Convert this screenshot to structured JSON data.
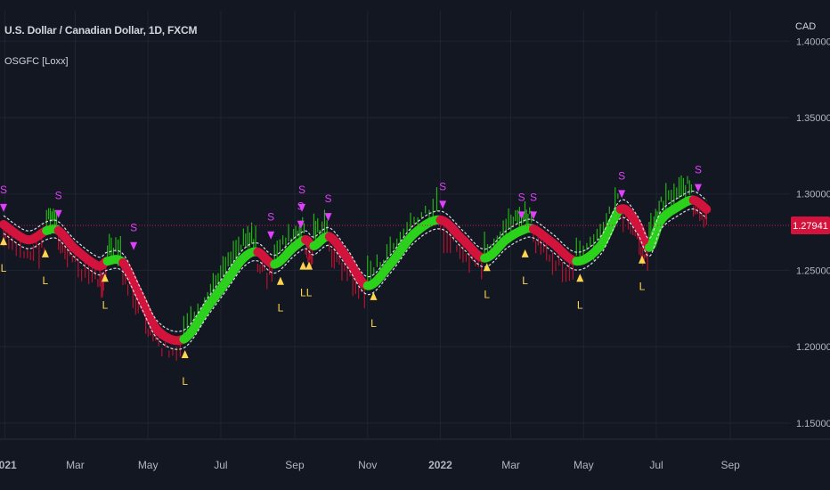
{
  "chart": {
    "title": "U.S. Dollar / Canadian Dollar, 1D, FXCM",
    "indicator_label": "OSGFC [Loxx]",
    "currency": "CAD",
    "last_price_label": "1.27941",
    "last_price": 1.27941,
    "colors": {
      "background": "#131722",
      "bull": "#2bd11b",
      "bear": "#d2143c",
      "short_marker": "#e040fb",
      "long_marker": "#ffd54f",
      "price_line": "#c2185b"
    }
  },
  "chart_data": {
    "type": "line",
    "title": "",
    "xlabel": "",
    "ylabel": "",
    "ylim": [
      1.14,
      1.42
    ],
    "y_ticks": [
      "1.40000",
      "1.35000",
      "1.30000",
      "1.25000",
      "1.20000",
      "1.15000"
    ],
    "y_tick_values": [
      1.4,
      1.35,
      1.3,
      1.25,
      1.2,
      1.15
    ],
    "x_ticks": [
      "2021",
      "Mar",
      "May",
      "Jul",
      "Sep",
      "Nov",
      "2022",
      "Mar",
      "May",
      "Jul",
      "Sep"
    ],
    "x_tick_dates": [
      "2021-01-01",
      "2021-03-01",
      "2021-05-01",
      "2021-07-01",
      "2021-09-01",
      "2021-11-01",
      "2022-01-01",
      "2022-03-01",
      "2022-05-01",
      "2022-07-01",
      "2022-09-01"
    ],
    "x_range": [
      "2020-12-31",
      "2022-09-30"
    ],
    "series": [
      {
        "points": [
          [
            "2020-12-31",
            1.28,
            "bear"
          ],
          [
            "2021-01-20",
            1.27,
            "bear"
          ],
          [
            "2021-02-05",
            1.276,
            "bull"
          ],
          [
            "2021-02-15",
            1.276,
            "bear"
          ],
          [
            "2021-03-01",
            1.264,
            "bear"
          ],
          [
            "2021-03-20",
            1.253,
            "bear"
          ],
          [
            "2021-03-28",
            1.256,
            "bull"
          ],
          [
            "2021-04-10",
            1.255,
            "bear"
          ],
          [
            "2021-04-25",
            1.232,
            "bear"
          ],
          [
            "2021-05-10",
            1.21,
            "bear"
          ],
          [
            "2021-05-31",
            1.205,
            "bull"
          ],
          [
            "2021-06-20",
            1.226,
            "bull"
          ],
          [
            "2021-07-05",
            1.242,
            "bull"
          ],
          [
            "2021-07-20",
            1.258,
            "bull"
          ],
          [
            "2021-08-01",
            1.262,
            "bear"
          ],
          [
            "2021-08-15",
            1.254,
            "bull"
          ],
          [
            "2021-08-31",
            1.265,
            "bull"
          ],
          [
            "2021-09-10",
            1.27,
            "bear"
          ],
          [
            "2021-09-17",
            1.266,
            "bull"
          ],
          [
            "2021-09-30",
            1.272,
            "bear"
          ],
          [
            "2021-10-15",
            1.258,
            "bear"
          ],
          [
            "2021-11-01",
            1.24,
            "bull"
          ],
          [
            "2021-11-20",
            1.254,
            "bull"
          ],
          [
            "2021-12-10",
            1.274,
            "bull"
          ],
          [
            "2022-01-01",
            1.283,
            "bear"
          ],
          [
            "2022-01-20",
            1.27,
            "bear"
          ],
          [
            "2022-02-07",
            1.258,
            "bull"
          ],
          [
            "2022-02-25",
            1.27,
            "bull"
          ],
          [
            "2022-03-10",
            1.276,
            "bull"
          ],
          [
            "2022-03-20",
            1.277,
            "bear"
          ],
          [
            "2022-04-05",
            1.268,
            "bear"
          ],
          [
            "2022-04-25",
            1.256,
            "bull"
          ],
          [
            "2022-05-15",
            1.266,
            "bull"
          ],
          [
            "2022-06-01",
            1.29,
            "bear"
          ],
          [
            "2022-06-15",
            1.28,
            "bear"
          ],
          [
            "2022-06-25",
            1.265,
            "bull"
          ],
          [
            "2022-07-05",
            1.283,
            "bull"
          ],
          [
            "2022-07-20",
            1.292,
            "bull"
          ],
          [
            "2022-08-01",
            1.296,
            "bear"
          ],
          [
            "2022-08-12",
            1.29,
            "bear"
          ]
        ]
      }
    ],
    "signals": [
      {
        "label": "S",
        "date": "2020-12-31",
        "price": 1.29
      },
      {
        "label": "L",
        "date": "2020-12-31",
        "price": 1.27
      },
      {
        "label": "L",
        "date": "2021-02-04",
        "price": 1.262
      },
      {
        "label": "S",
        "date": "2021-02-15",
        "price": 1.286
      },
      {
        "label": "L",
        "date": "2021-03-26",
        "price": 1.246
      },
      {
        "label": "S",
        "date": "2021-04-19",
        "price": 1.265
      },
      {
        "label": "L",
        "date": "2021-06-01",
        "price": 1.196
      },
      {
        "label": "S",
        "date": "2021-08-12",
        "price": 1.272
      },
      {
        "label": "L",
        "date": "2021-08-20",
        "price": 1.244
      },
      {
        "label": "S",
        "date": "2021-09-06",
        "price": 1.279
      },
      {
        "label": "S",
        "date": "2021-09-07",
        "price": 1.29
      },
      {
        "label": "L",
        "date": "2021-09-08",
        "price": 1.254
      },
      {
        "label": "L",
        "date": "2021-09-13",
        "price": 1.254
      },
      {
        "label": "S",
        "date": "2021-09-29",
        "price": 1.284
      },
      {
        "label": "L",
        "date": "2021-11-06",
        "price": 1.234
      },
      {
        "label": "S",
        "date": "2022-01-03",
        "price": 1.292
      },
      {
        "label": "L",
        "date": "2022-02-09",
        "price": 1.253
      },
      {
        "label": "S",
        "date": "2022-03-10",
        "price": 1.285
      },
      {
        "label": "L",
        "date": "2022-03-13",
        "price": 1.262
      },
      {
        "label": "S",
        "date": "2022-03-20",
        "price": 1.285
      },
      {
        "label": "L",
        "date": "2022-04-28",
        "price": 1.246
      },
      {
        "label": "S",
        "date": "2022-06-02",
        "price": 1.299
      },
      {
        "label": "L",
        "date": "2022-06-19",
        "price": 1.258
      },
      {
        "label": "S",
        "date": "2022-08-05",
        "price": 1.303
      }
    ]
  }
}
